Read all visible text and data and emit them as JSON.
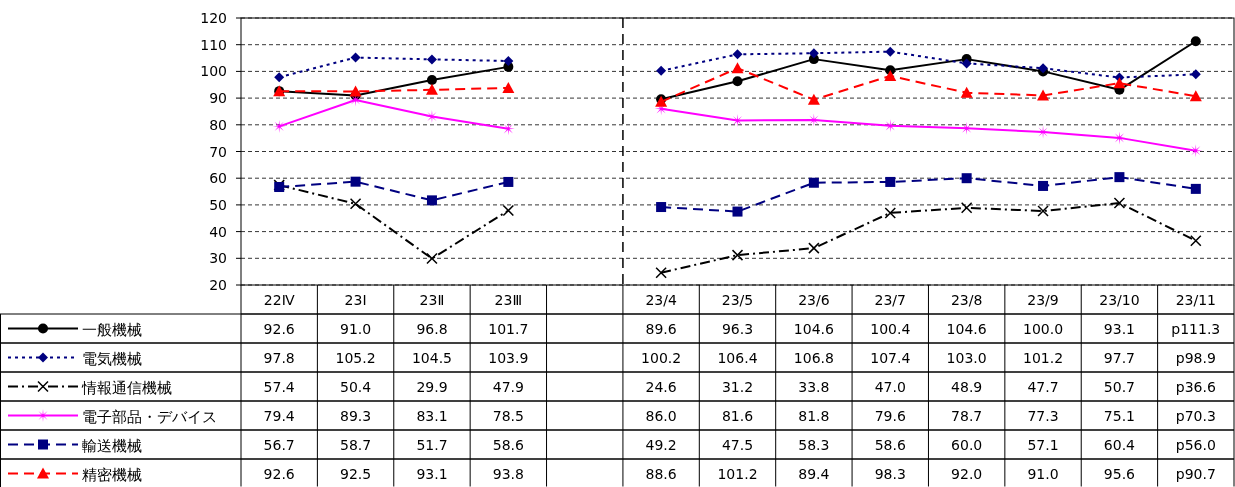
{
  "chart_data": {
    "type": "line",
    "categories": [
      "22Ⅳ",
      "23Ⅰ",
      "23Ⅱ",
      "23Ⅲ",
      null,
      "23/4",
      "23/5",
      "23/6",
      "23/7",
      "23/8",
      "23/9",
      "23/10",
      "23/11"
    ],
    "ylim": [
      20,
      120
    ],
    "yticks": [
      20,
      30,
      40,
      50,
      60,
      70,
      80,
      90,
      100,
      110,
      120
    ],
    "grid": "y",
    "legend": "left",
    "ref_lines": [
      {
        "axis": "x",
        "value": "23/4",
        "color": "#000000",
        "line_style": "dashed"
      }
    ],
    "series": [
      {
        "name": "一般機械",
        "color": "#000000",
        "marker": "circle",
        "line_style": "solid",
        "values": [
          92.6,
          91.0,
          96.8,
          101.7,
          null,
          89.6,
          96.3,
          104.6,
          100.4,
          104.6,
          100.0,
          93.1,
          111.3
        ],
        "value_labels": [
          "92.6",
          "91.0",
          "96.8",
          "101.7",
          null,
          "89.6",
          "96.3",
          "104.6",
          "100.4",
          "104.6",
          "100.0",
          "93.1",
          "p111.3"
        ]
      },
      {
        "name": "電気機械",
        "color": "#000080",
        "marker": "diamond",
        "line_style": "dotted",
        "values": [
          97.8,
          105.2,
          104.5,
          103.9,
          null,
          100.2,
          106.4,
          106.8,
          107.4,
          103.0,
          101.2,
          97.7,
          98.9
        ],
        "value_labels": [
          "97.8",
          "105.2",
          "104.5",
          "103.9",
          null,
          "100.2",
          "106.4",
          "106.8",
          "107.4",
          "103.0",
          "101.2",
          "97.7",
          "p98.9"
        ]
      },
      {
        "name": "情報通信機械",
        "color": "#000000",
        "marker": "cross",
        "line_style": "dashdot",
        "values": [
          57.4,
          50.4,
          29.9,
          47.9,
          null,
          24.6,
          31.2,
          33.8,
          47.0,
          48.9,
          47.7,
          50.7,
          36.6
        ],
        "value_labels": [
          "57.4",
          "50.4",
          "29.9",
          "47.9",
          null,
          "24.6",
          "31.2",
          "33.8",
          "47.0",
          "48.9",
          "47.7",
          "50.7",
          "p36.6"
        ]
      },
      {
        "name": "電子部品・デバイス",
        "color": "#ff00ff",
        "marker": "star",
        "line_style": "solid",
        "values": [
          79.4,
          89.3,
          83.1,
          78.5,
          null,
          86.0,
          81.6,
          81.8,
          79.6,
          78.7,
          77.3,
          75.1,
          70.3
        ],
        "value_labels": [
          "79.4",
          "89.3",
          "83.1",
          "78.5",
          null,
          "86.0",
          "81.6",
          "81.8",
          "79.6",
          "78.7",
          "77.3",
          "75.1",
          "p70.3"
        ]
      },
      {
        "name": "輸送機械",
        "color": "#000080",
        "marker": "square",
        "line_style": "dashed",
        "values": [
          56.7,
          58.7,
          51.7,
          58.6,
          null,
          49.2,
          47.5,
          58.3,
          58.6,
          60.0,
          57.1,
          60.4,
          56.0
        ],
        "value_labels": [
          "56.7",
          "58.7",
          "51.7",
          "58.6",
          null,
          "49.2",
          "47.5",
          "58.3",
          "58.6",
          "60.0",
          "57.1",
          "60.4",
          "p56.0"
        ]
      },
      {
        "name": "精密機械",
        "color": "#ff0000",
        "marker": "triangle",
        "line_style": "dashed",
        "values": [
          92.6,
          92.5,
          93.1,
          93.8,
          null,
          88.6,
          101.2,
          89.4,
          98.3,
          92.0,
          91.0,
          95.6,
          90.7
        ],
        "value_labels": [
          "92.6",
          "92.5",
          "93.1",
          "93.8",
          null,
          "88.6",
          "101.2",
          "89.4",
          "98.3",
          "92.0",
          "91.0",
          "95.6",
          "p90.7"
        ]
      }
    ]
  }
}
